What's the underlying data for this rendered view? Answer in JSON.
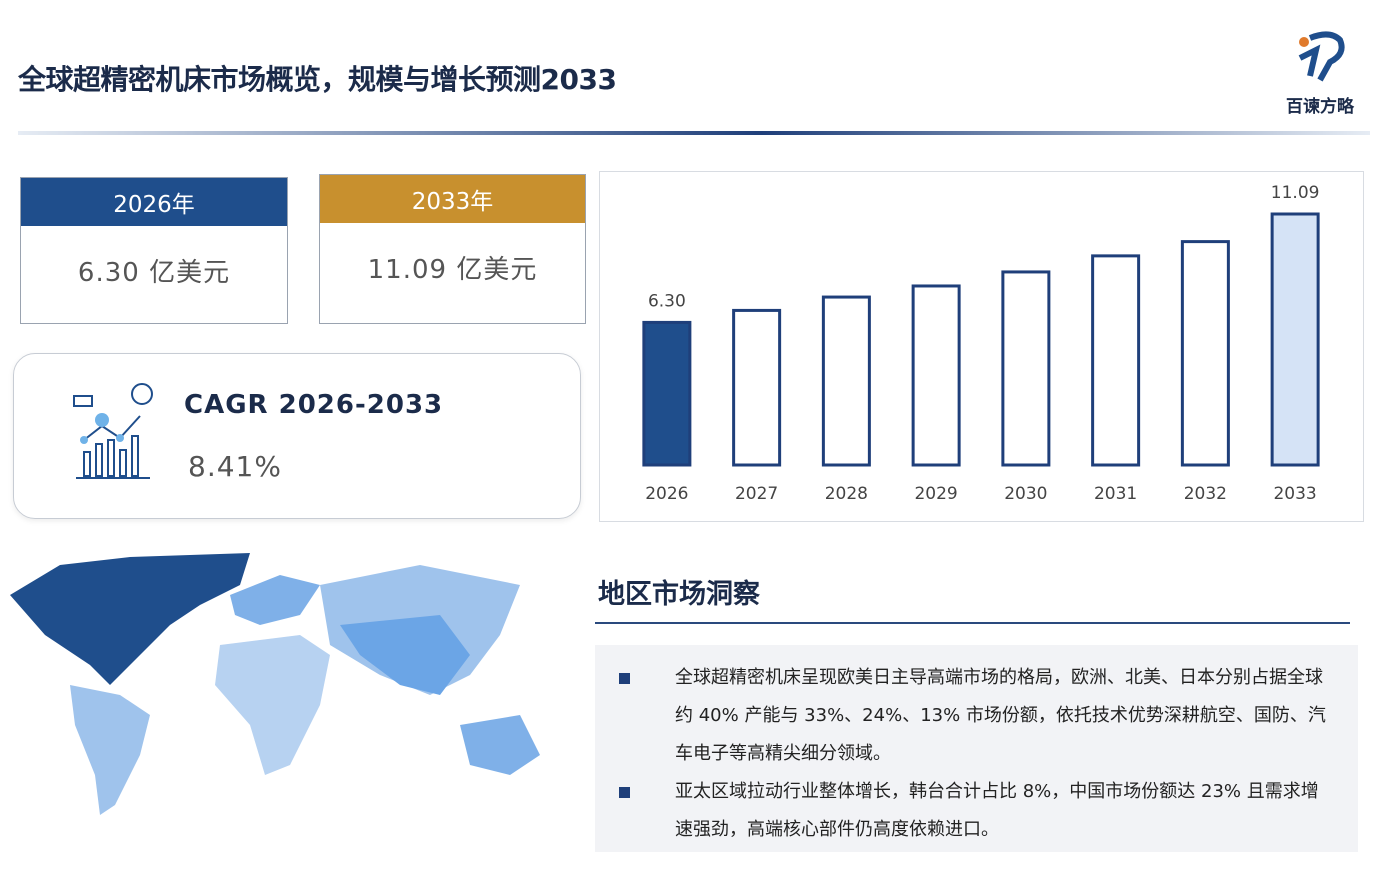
{
  "header": {
    "title": "全球超精密机床市场概览，规模与增长预测2033",
    "logo": "百谏方略"
  },
  "cards": [
    {
      "year": "2026年",
      "value": "6.30 亿美元"
    },
    {
      "year": "2033年",
      "value": "11.09 亿美元"
    }
  ],
  "cagr": {
    "label": "CAGR 2026-2033",
    "value": "8.41%"
  },
  "chart_data": {
    "type": "bar",
    "categories": [
      "2026",
      "2027",
      "2028",
      "2029",
      "2030",
      "2031",
      "2032",
      "2033"
    ],
    "values": [
      6.3,
      6.83,
      7.42,
      7.91,
      8.53,
      9.24,
      9.87,
      11.09
    ],
    "value_labels": [
      "6.30",
      null,
      null,
      null,
      null,
      null,
      null,
      "11.09"
    ],
    "colors": [
      "#1f4e8c",
      "#ffffff",
      "#ffffff",
      "#ffffff",
      "#ffffff",
      "#ffffff",
      "#ffffff",
      "#d5e3f6"
    ],
    "edge_color": "#1f3f7a"
  },
  "region": {
    "title": "地区市场洞察",
    "bullets": [
      "全球超精密机床呈现欧美日主导高端市场的格局，欧洲、北美、日本分别占据全球约 40% 产能与 33%、24%、13% 市场份额，依托技术优势深耕航空、国防、汽车电子等高精尖细分领域。",
      "亚太区域拉动行业整体增长，韩台合计占比 8%，中国市场份额达 23% 且需求增速强劲，高端核心部件仍高度依赖进口。"
    ]
  }
}
